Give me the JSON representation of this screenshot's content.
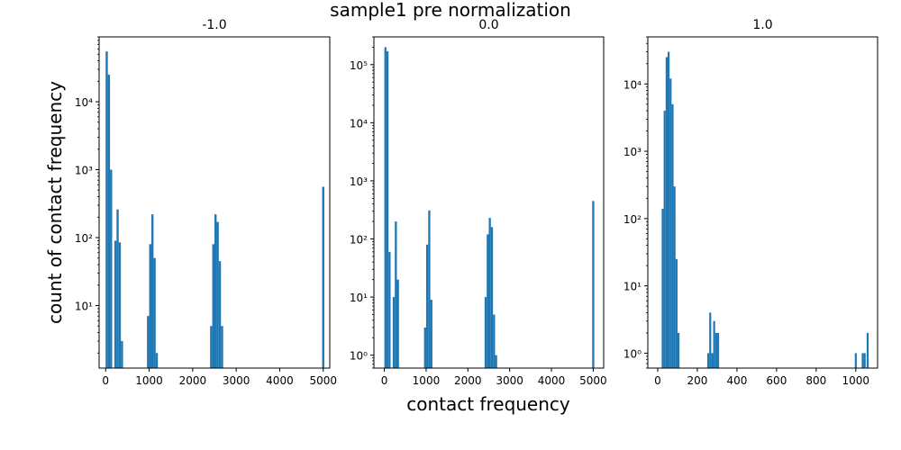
{
  "figure": {
    "suptitle": "sample1 pre normalization",
    "xlabel": "contact frequency",
    "ylabel": "count of contact frequency",
    "bar_color": "#1f77b4"
  },
  "chart_data": [
    {
      "type": "bar",
      "title": "-1.0",
      "yscale": "log",
      "xlim": [
        -150,
        5150
      ],
      "ylim": [
        1.2,
        90000
      ],
      "xticks": [
        0,
        1000,
        2000,
        3000,
        4000,
        5000
      ],
      "xtick_labels": [
        "0",
        "1000",
        "2000",
        "3000",
        "4000",
        "5000"
      ],
      "yticks": [
        10,
        100,
        1000,
        10000
      ],
      "ytick_labels": [
        "10¹",
        "10²",
        "10³",
        "10⁴"
      ],
      "bin_width": 50,
      "bins": [
        {
          "x": 0,
          "count": 55000
        },
        {
          "x": 50,
          "count": 25000
        },
        {
          "x": 100,
          "count": 1000
        },
        {
          "x": 200,
          "count": 90
        },
        {
          "x": 250,
          "count": 260
        },
        {
          "x": 300,
          "count": 85
        },
        {
          "x": 350,
          "count": 3
        },
        {
          "x": 950,
          "count": 7
        },
        {
          "x": 1000,
          "count": 80
        },
        {
          "x": 1050,
          "count": 220
        },
        {
          "x": 1100,
          "count": 50
        },
        {
          "x": 1150,
          "count": 2
        },
        {
          "x": 2400,
          "count": 5
        },
        {
          "x": 2450,
          "count": 80
        },
        {
          "x": 2500,
          "count": 220
        },
        {
          "x": 2550,
          "count": 170
        },
        {
          "x": 2600,
          "count": 45
        },
        {
          "x": 2650,
          "count": 5
        },
        {
          "x": 4975,
          "count": 560
        }
      ]
    },
    {
      "type": "bar",
      "title": "0.0",
      "yscale": "log",
      "xlim": [
        -250,
        5250
      ],
      "ylim": [
        0.6,
        300000
      ],
      "xticks": [
        0,
        1000,
        2000,
        3000,
        4000,
        5000
      ],
      "xtick_labels": [
        "0",
        "1000",
        "2000",
        "3000",
        "4000",
        "5000"
      ],
      "yticks": [
        1,
        10,
        100,
        1000,
        10000,
        100000
      ],
      "ytick_labels": [
        "10⁰",
        "10¹",
        "10²",
        "10³",
        "10⁴",
        "10⁵"
      ],
      "bin_width": 50,
      "bins": [
        {
          "x": 0,
          "count": 200000
        },
        {
          "x": 50,
          "count": 170000
        },
        {
          "x": 100,
          "count": 60
        },
        {
          "x": 200,
          "count": 10
        },
        {
          "x": 250,
          "count": 200
        },
        {
          "x": 300,
          "count": 20
        },
        {
          "x": 950,
          "count": 3
        },
        {
          "x": 1000,
          "count": 80
        },
        {
          "x": 1050,
          "count": 310
        },
        {
          "x": 1100,
          "count": 9
        },
        {
          "x": 2400,
          "count": 10
        },
        {
          "x": 2450,
          "count": 120
        },
        {
          "x": 2500,
          "count": 230
        },
        {
          "x": 2550,
          "count": 160
        },
        {
          "x": 2600,
          "count": 5
        },
        {
          "x": 2650,
          "count": 1
        },
        {
          "x": 4975,
          "count": 450
        }
      ]
    },
    {
      "type": "bar",
      "title": "1.0",
      "yscale": "log",
      "xlim": [
        -50,
        1110
      ],
      "ylim": [
        0.6,
        50000
      ],
      "xticks": [
        0,
        200,
        400,
        600,
        800,
        1000
      ],
      "xtick_labels": [
        "0",
        "200",
        "400",
        "600",
        "800",
        "1000"
      ],
      "yticks": [
        1,
        10,
        100,
        1000,
        10000
      ],
      "ytick_labels": [
        "10⁰",
        "10¹",
        "10²",
        "10³",
        "10⁴"
      ],
      "bin_width": 10,
      "bins": [
        {
          "x": 20,
          "count": 140
        },
        {
          "x": 30,
          "count": 4000
        },
        {
          "x": 40,
          "count": 25000
        },
        {
          "x": 50,
          "count": 30000
        },
        {
          "x": 60,
          "count": 12000
        },
        {
          "x": 70,
          "count": 5000
        },
        {
          "x": 80,
          "count": 300
        },
        {
          "x": 90,
          "count": 25
        },
        {
          "x": 100,
          "count": 2
        },
        {
          "x": 250,
          "count": 1
        },
        {
          "x": 260,
          "count": 4
        },
        {
          "x": 270,
          "count": 1
        },
        {
          "x": 280,
          "count": 3
        },
        {
          "x": 290,
          "count": 2
        },
        {
          "x": 300,
          "count": 2
        },
        {
          "x": 995,
          "count": 1
        },
        {
          "x": 1030,
          "count": 1
        },
        {
          "x": 1040,
          "count": 1
        },
        {
          "x": 1055,
          "count": 2
        }
      ]
    }
  ]
}
